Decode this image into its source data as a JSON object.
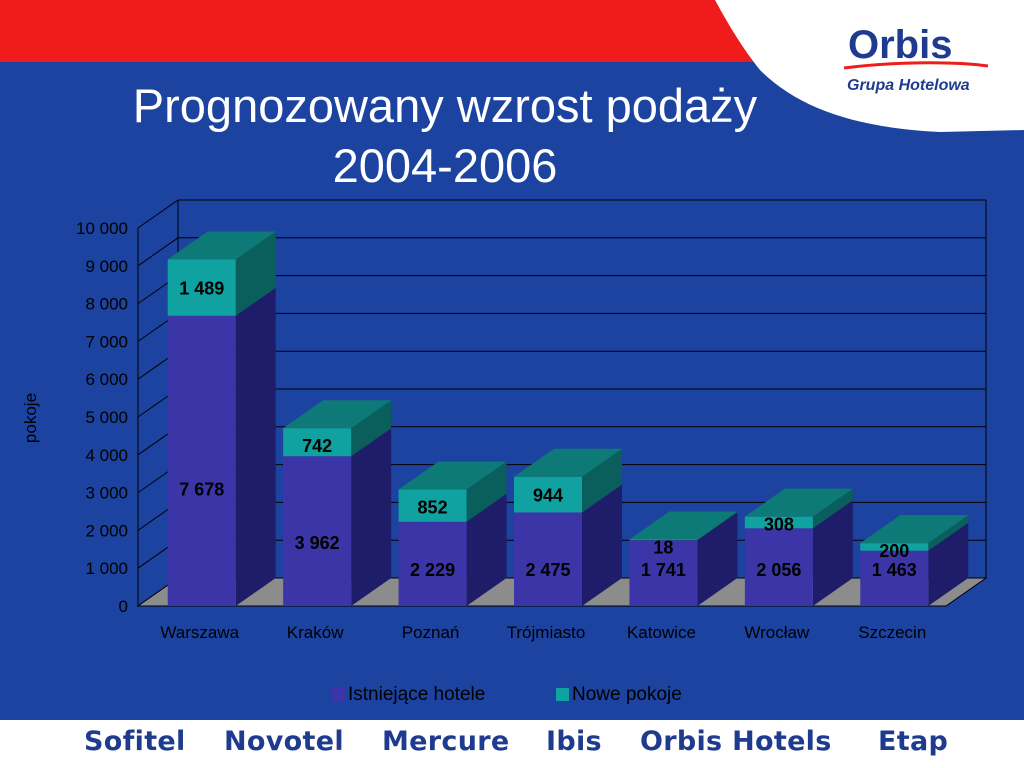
{
  "slide": {
    "title_line1": "Prognozowany wzrost podaży",
    "title_line2": "2004-2006",
    "logo": {
      "name": "Orbis",
      "subtitle": "Grupa Hotelowa"
    },
    "brands": [
      "Sofitel",
      "Novotel",
      "Mercure",
      "Ibis",
      "Orbis Hotels",
      "Etap"
    ],
    "colors": {
      "background": "#1c43a0",
      "accent_red": "#f01c1c",
      "brand_navy": "#1f3b8f"
    }
  },
  "chart_data": {
    "type": "bar",
    "stacked": true,
    "three_d": true,
    "categories": [
      "Warszawa",
      "Kraków",
      "Poznań",
      "Trójmiasto",
      "Katowice",
      "Wrocław",
      "Szczecin"
    ],
    "series": [
      {
        "name": "Istniejące hotele",
        "values": [
          7678,
          3962,
          2229,
          2475,
          1741,
          2056,
          1463
        ],
        "labels": [
          "7 678",
          "3 962",
          "2 229",
          "2 475",
          "1 741",
          "2 056",
          "1 463"
        ],
        "color": "#3c35a7"
      },
      {
        "name": "Nowe pokoje",
        "values": [
          1489,
          742,
          852,
          944,
          18,
          308,
          200
        ],
        "labels": [
          "1 489",
          "742",
          "852",
          "944",
          "18",
          "308",
          "200"
        ],
        "color": "#10a2a0"
      }
    ],
    "ylabel": "pokoje",
    "ylim": [
      0,
      10000
    ],
    "yticks": [
      0,
      1000,
      2000,
      3000,
      4000,
      5000,
      6000,
      7000,
      8000,
      9000,
      10000
    ],
    "ytick_labels": [
      "0",
      "1 000",
      "2 000",
      "3 000",
      "4 000",
      "5 000",
      "6 000",
      "7 000",
      "8 000",
      "9 000",
      "10 000"
    ],
    "grid": true,
    "legend_position": "bottom"
  }
}
